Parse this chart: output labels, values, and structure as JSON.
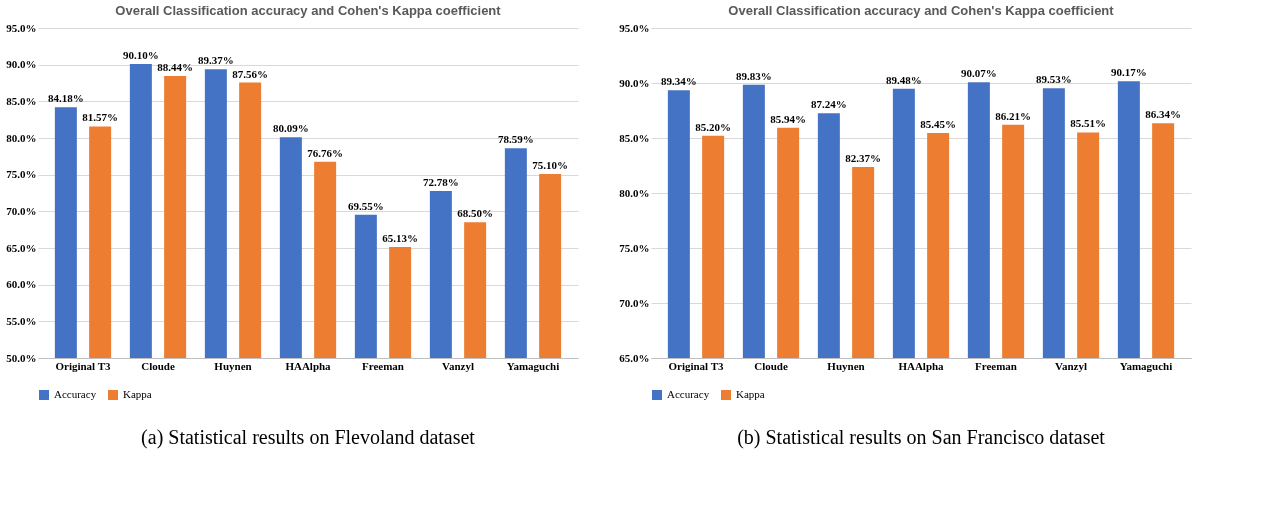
{
  "chart_data": [
    {
      "type": "bar",
      "title": "Overall Classification accuracy and Cohen's Kappa coefficient",
      "categories": [
        "Original T3",
        "Cloude",
        "Huynen",
        "HAAlpha",
        "Freeman",
        "Vanzyl",
        "Yamaguchi"
      ],
      "series": [
        {
          "name": "Accuracy",
          "color": "#4472c4",
          "values": [
            84.18,
            90.1,
            89.37,
            80.09,
            69.55,
            72.78,
            78.59
          ],
          "value_labels": [
            "84.18%",
            "90.10%",
            "89.37%",
            "80.09%",
            "69.55%",
            "72.78%",
            "78.59%"
          ]
        },
        {
          "name": "Kappa",
          "color": "#ed7d31",
          "values": [
            81.57,
            88.44,
            87.56,
            76.76,
            65.13,
            68.5,
            75.1
          ],
          "value_labels": [
            "81.57%",
            "88.44%",
            "87.56%",
            "76.76%",
            "65.13%",
            "68.50%",
            "75.10%"
          ]
        }
      ],
      "ylim": [
        50,
        95
      ],
      "yticks": [
        {
          "value": 50,
          "label": "50.0%"
        },
        {
          "value": 55,
          "label": "55.0%"
        },
        {
          "value": 60,
          "label": "60.0%"
        },
        {
          "value": 65,
          "label": "65.0%"
        },
        {
          "value": 70,
          "label": "70.0%"
        },
        {
          "value": 75,
          "label": "75.0%"
        },
        {
          "value": 80,
          "label": "80.0%"
        },
        {
          "value": 85,
          "label": "85.0%"
        },
        {
          "value": 90,
          "label": "90.0%"
        },
        {
          "value": 95,
          "label": "95.0%"
        }
      ],
      "grid": "y",
      "legend": "bottom",
      "annotations": [
        "(a) Statistical results on Flevoland dataset"
      ]
    },
    {
      "type": "bar",
      "title": "Overall Classification accuracy and Cohen's Kappa coefficient",
      "categories": [
        "Original T3",
        "Cloude",
        "Huynen",
        "HAAlpha",
        "Freeman",
        "Vanzyl",
        "Yamaguchi"
      ],
      "series": [
        {
          "name": "Accuracy",
          "color": "#4472c4",
          "values": [
            89.34,
            89.83,
            87.24,
            89.48,
            90.07,
            89.53,
            90.17
          ],
          "value_labels": [
            "89.34%",
            "89.83%",
            "87.24%",
            "89.48%",
            "90.07%",
            "89.53%",
            "90.17%"
          ]
        },
        {
          "name": "Kappa",
          "color": "#ed7d31",
          "values": [
            85.2,
            85.94,
            82.37,
            85.45,
            86.21,
            85.51,
            86.34
          ],
          "value_labels": [
            "85.20%",
            "85.94%",
            "82.37%",
            "85.45%",
            "86.21%",
            "85.51%",
            "86.34%"
          ]
        }
      ],
      "ylim": [
        65,
        95
      ],
      "yticks": [
        {
          "value": 65,
          "label": "65.0%"
        },
        {
          "value": 70,
          "label": "70.0%"
        },
        {
          "value": 75,
          "label": "75.0%"
        },
        {
          "value": 80,
          "label": "80.0%"
        },
        {
          "value": 85,
          "label": "85.0%"
        },
        {
          "value": 90,
          "label": "90.0%"
        },
        {
          "value": 95,
          "label": "95.0%"
        }
      ],
      "grid": "y",
      "legend": "bottom",
      "annotations": [
        "(b) Statistical results on San Francisco dataset"
      ]
    }
  ]
}
